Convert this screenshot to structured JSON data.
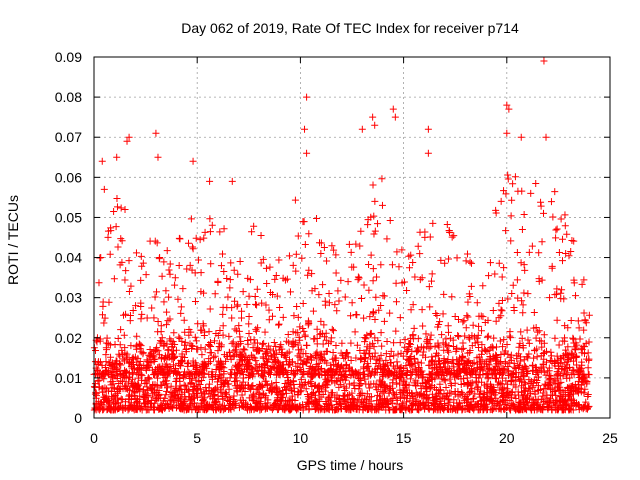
{
  "chart_data": {
    "type": "scatter",
    "title": "Day 062 of 2019, Rate Of TEC Index for receiver p714",
    "xlabel": "GPS time / hours",
    "ylabel": "ROTI / TECUs",
    "xlim": [
      0,
      25
    ],
    "ylim": [
      0,
      0.09
    ],
    "x_ticks": [
      "0",
      "5",
      "10",
      "15",
      "20",
      "25"
    ],
    "x_tick_values": [
      0,
      5,
      10,
      15,
      20,
      25
    ],
    "y_ticks": [
      "0",
      "0.01",
      "0.02",
      "0.03",
      "0.04",
      "0.05",
      "0.06",
      "0.07",
      "0.08",
      "0.09"
    ],
    "y_tick_values": [
      0,
      0.01,
      0.02,
      0.03,
      0.04,
      0.05,
      0.06,
      0.07,
      0.08,
      0.09
    ],
    "grid": true,
    "marker": "+",
    "series_color": "#ff0000",
    "series": [
      {
        "name": "ROTI",
        "notable_points": [
          {
            "x": 0.4,
            "y": 0.064
          },
          {
            "x": 0.5,
            "y": 0.057
          },
          {
            "x": 1.1,
            "y": 0.065
          },
          {
            "x": 1.6,
            "y": 0.069
          },
          {
            "x": 1.7,
            "y": 0.07
          },
          {
            "x": 3.0,
            "y": 0.071
          },
          {
            "x": 3.1,
            "y": 0.065
          },
          {
            "x": 4.8,
            "y": 0.064
          },
          {
            "x": 5.6,
            "y": 0.059
          },
          {
            "x": 6.7,
            "y": 0.059
          },
          {
            "x": 10.2,
            "y": 0.072
          },
          {
            "x": 10.3,
            "y": 0.08
          },
          {
            "x": 10.3,
            "y": 0.066
          },
          {
            "x": 13.0,
            "y": 0.072
          },
          {
            "x": 13.5,
            "y": 0.075
          },
          {
            "x": 13.6,
            "y": 0.073
          },
          {
            "x": 14.5,
            "y": 0.077
          },
          {
            "x": 14.6,
            "y": 0.075
          },
          {
            "x": 16.2,
            "y": 0.072
          },
          {
            "x": 16.2,
            "y": 0.066
          },
          {
            "x": 20.0,
            "y": 0.078
          },
          {
            "x": 20.1,
            "y": 0.077
          },
          {
            "x": 20.0,
            "y": 0.071
          },
          {
            "x": 20.7,
            "y": 0.07
          },
          {
            "x": 21.8,
            "y": 0.089
          },
          {
            "x": 21.9,
            "y": 0.07
          }
        ]
      }
    ],
    "density_profile": {
      "description": "Approximate upper envelope of the dense point cloud per hour bin (ROTI TECUs); dense band lies ~0.003 to 0.02",
      "hours": [
        0,
        1,
        2,
        3,
        4,
        5,
        6,
        7,
        8,
        9,
        10,
        11,
        12,
        13,
        14,
        15,
        16,
        17,
        18,
        19,
        20,
        21,
        22,
        23,
        24
      ],
      "envelope": [
        0.035,
        0.055,
        0.053,
        0.05,
        0.045,
        0.052,
        0.058,
        0.045,
        0.05,
        0.04,
        0.06,
        0.048,
        0.04,
        0.055,
        0.062,
        0.042,
        0.053,
        0.05,
        0.042,
        0.045,
        0.062,
        0.058,
        0.06,
        0.05,
        0.03
      ],
      "floor": 0.002,
      "band_top": 0.018
    }
  }
}
